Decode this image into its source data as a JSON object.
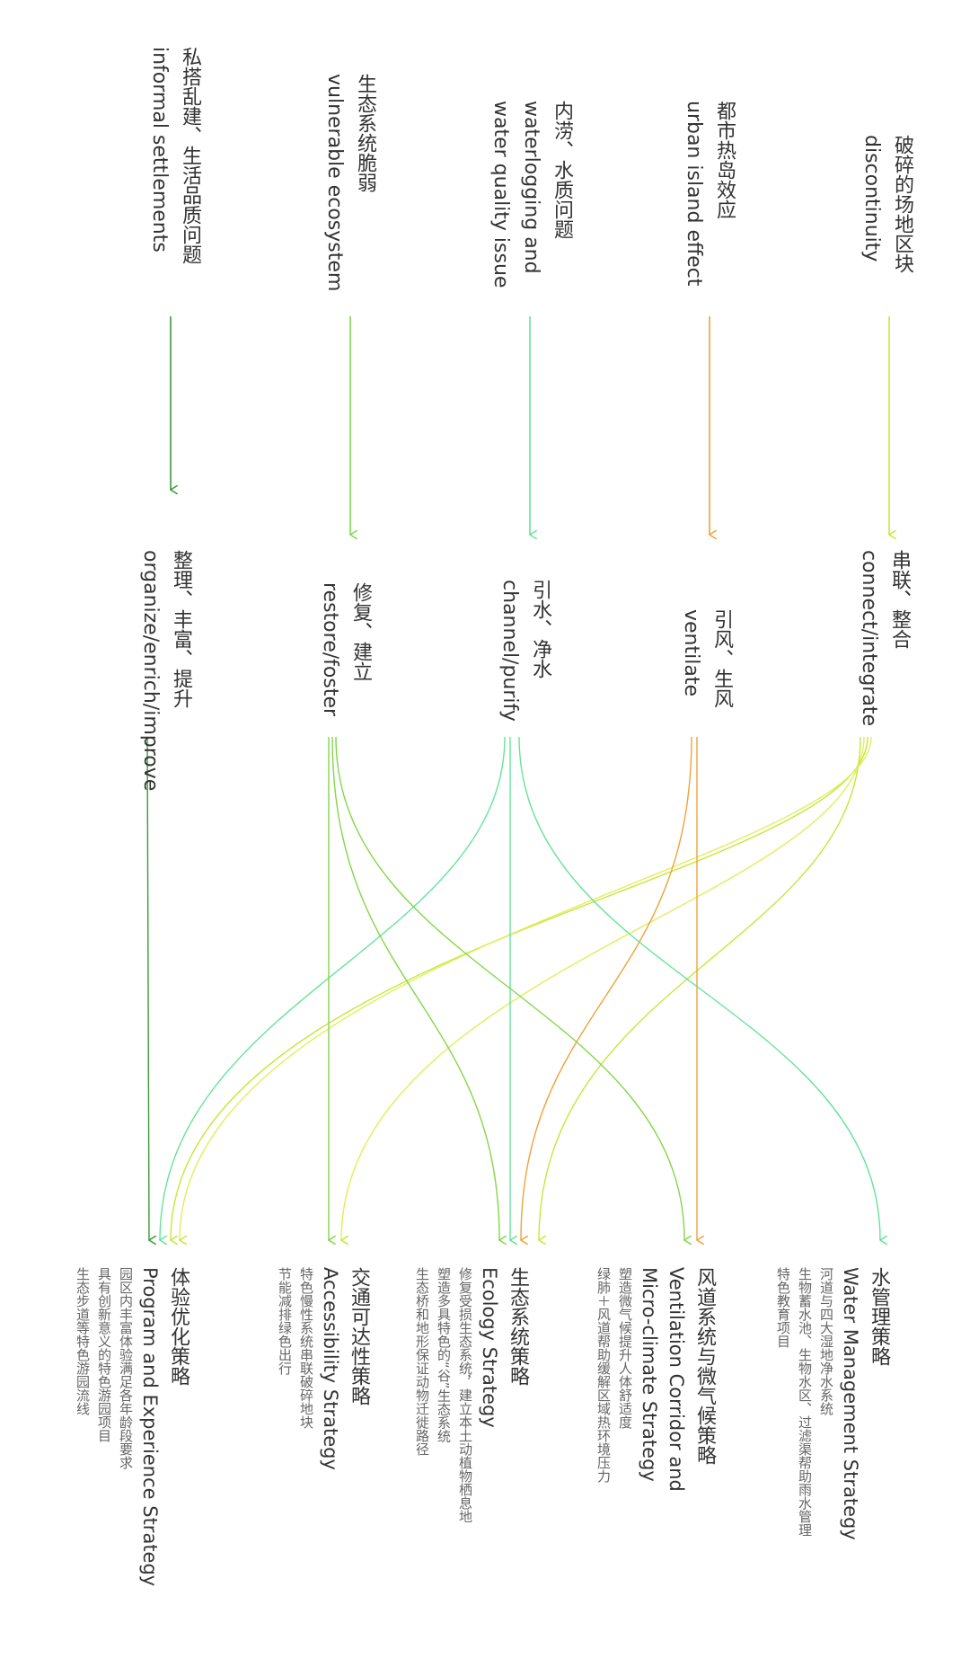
{
  "problems": [
    {
      "cn": "破碎的场地区块",
      "en": "discontinuity"
    },
    {
      "cn": "都市热岛效应",
      "en": "urban island effect"
    },
    {
      "cn": "内涝、水质问题",
      "en": "waterlogging and",
      "en2": "water quality issue"
    },
    {
      "cn": "生态系统脆弱",
      "en": "vulnerable ecosystem"
    },
    {
      "cn": "私搭乱建、生活品质问题",
      "en": "informal settlements"
    }
  ],
  "solutions": [
    {
      "cn": "串联、整合",
      "en": "connect/integrate"
    },
    {
      "cn": "引风、生风",
      "en": "ventilate"
    },
    {
      "cn": "引水、净水",
      "en": "channel/purify"
    },
    {
      "cn": "修复、建立",
      "en": "restore/foster"
    },
    {
      "cn": "整理、丰富、提升",
      "en": "organize/enrich/improve"
    }
  ],
  "strategies": [
    {
      "cn": "水管理策略",
      "en": "Water Management Strategy",
      "desc": [
        "河道与四大湿地净水系统",
        "生物蓄水池、生物水区、过滤渠帮助雨水管理",
        "特色教育项目"
      ]
    },
    {
      "cn": "风道系统与微气候策略",
      "en": "Ventilation Corridor and",
      "en2": "Micro-climate Strategy",
      "desc": [
        "塑造微气候提升人体舒适度",
        "绿肺＋风道帮助缓解区域热环境压力"
      ]
    },
    {
      "cn": "生态系统策略",
      "en": "Ecology Strategy",
      "desc": [
        "修复受损生态系统，建立本土动植物栖息地",
        "塑造多具特色的“谷”生态系统",
        "生态桥和地形保证动物迁徙路径"
      ]
    },
    {
      "cn": "交通可达性策略",
      "en": "Accessibility Strategy",
      "desc": [
        "特色慢性系统串联破碎地块",
        "节能减排绿色出行"
      ]
    },
    {
      "cn": "体验优化策略",
      "en": "Program and Experience Strategy",
      "desc": [
        "园区内丰富体验满足各年龄段要求",
        "具有创新意义的特色游园项目",
        "生态步道等特色游园流线"
      ]
    }
  ],
  "colors": {
    "yellow_green": "#c8e639",
    "orange": "#f0a23a",
    "aqua": "#66e39a",
    "green": "#84d64a",
    "dark_green": "#3c9a38",
    "light_yellow": "#e2ee5a",
    "mint": "#6ee8b0"
  }
}
